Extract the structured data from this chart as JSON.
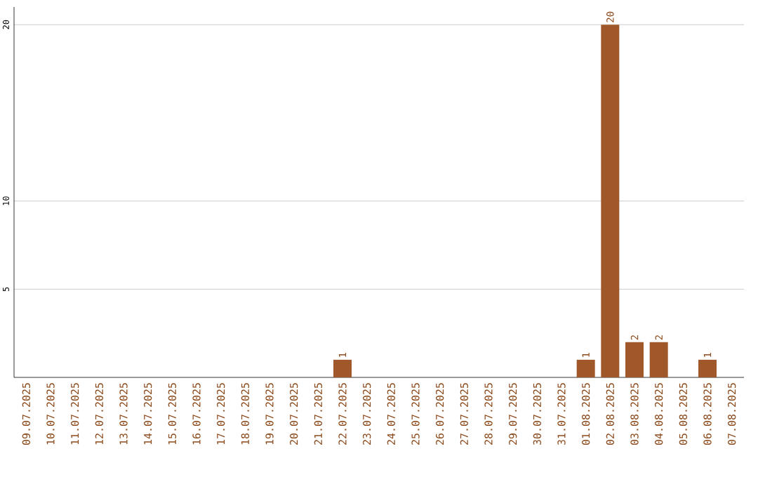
{
  "chart_data": {
    "type": "bar",
    "categories": [
      "09.07.2025",
      "10.07.2025",
      "11.07.2025",
      "12.07.2025",
      "13.07.2025",
      "14.07.2025",
      "15.07.2025",
      "16.07.2025",
      "17.07.2025",
      "18.07.2025",
      "19.07.2025",
      "20.07.2025",
      "21.07.2025",
      "22.07.2025",
      "23.07.2025",
      "24.07.2025",
      "25.07.2025",
      "26.07.2025",
      "27.07.2025",
      "28.07.2025",
      "29.07.2025",
      "30.07.2025",
      "31.07.2025",
      "01.08.2025",
      "02.08.2025",
      "03.08.2025",
      "04.08.2025",
      "05.08.2025",
      "06.08.2025",
      "07.08.2025"
    ],
    "values": [
      0,
      0,
      0,
      0,
      0,
      0,
      0,
      0,
      0,
      0,
      0,
      0,
      0,
      1,
      0,
      0,
      0,
      0,
      0,
      0,
      0,
      0,
      0,
      1,
      20,
      2,
      2,
      0,
      1,
      0
    ],
    "value_labels": [
      null,
      null,
      null,
      null,
      null,
      null,
      null,
      null,
      null,
      null,
      null,
      null,
      null,
      "1",
      null,
      null,
      null,
      null,
      null,
      null,
      null,
      null,
      null,
      "1",
      "20",
      "2",
      "2",
      null,
      "1",
      null
    ],
    "color": "#a0582a",
    "ylim": [
      0,
      21
    ],
    "yticks": [
      5,
      10,
      20
    ],
    "grid": "y"
  }
}
